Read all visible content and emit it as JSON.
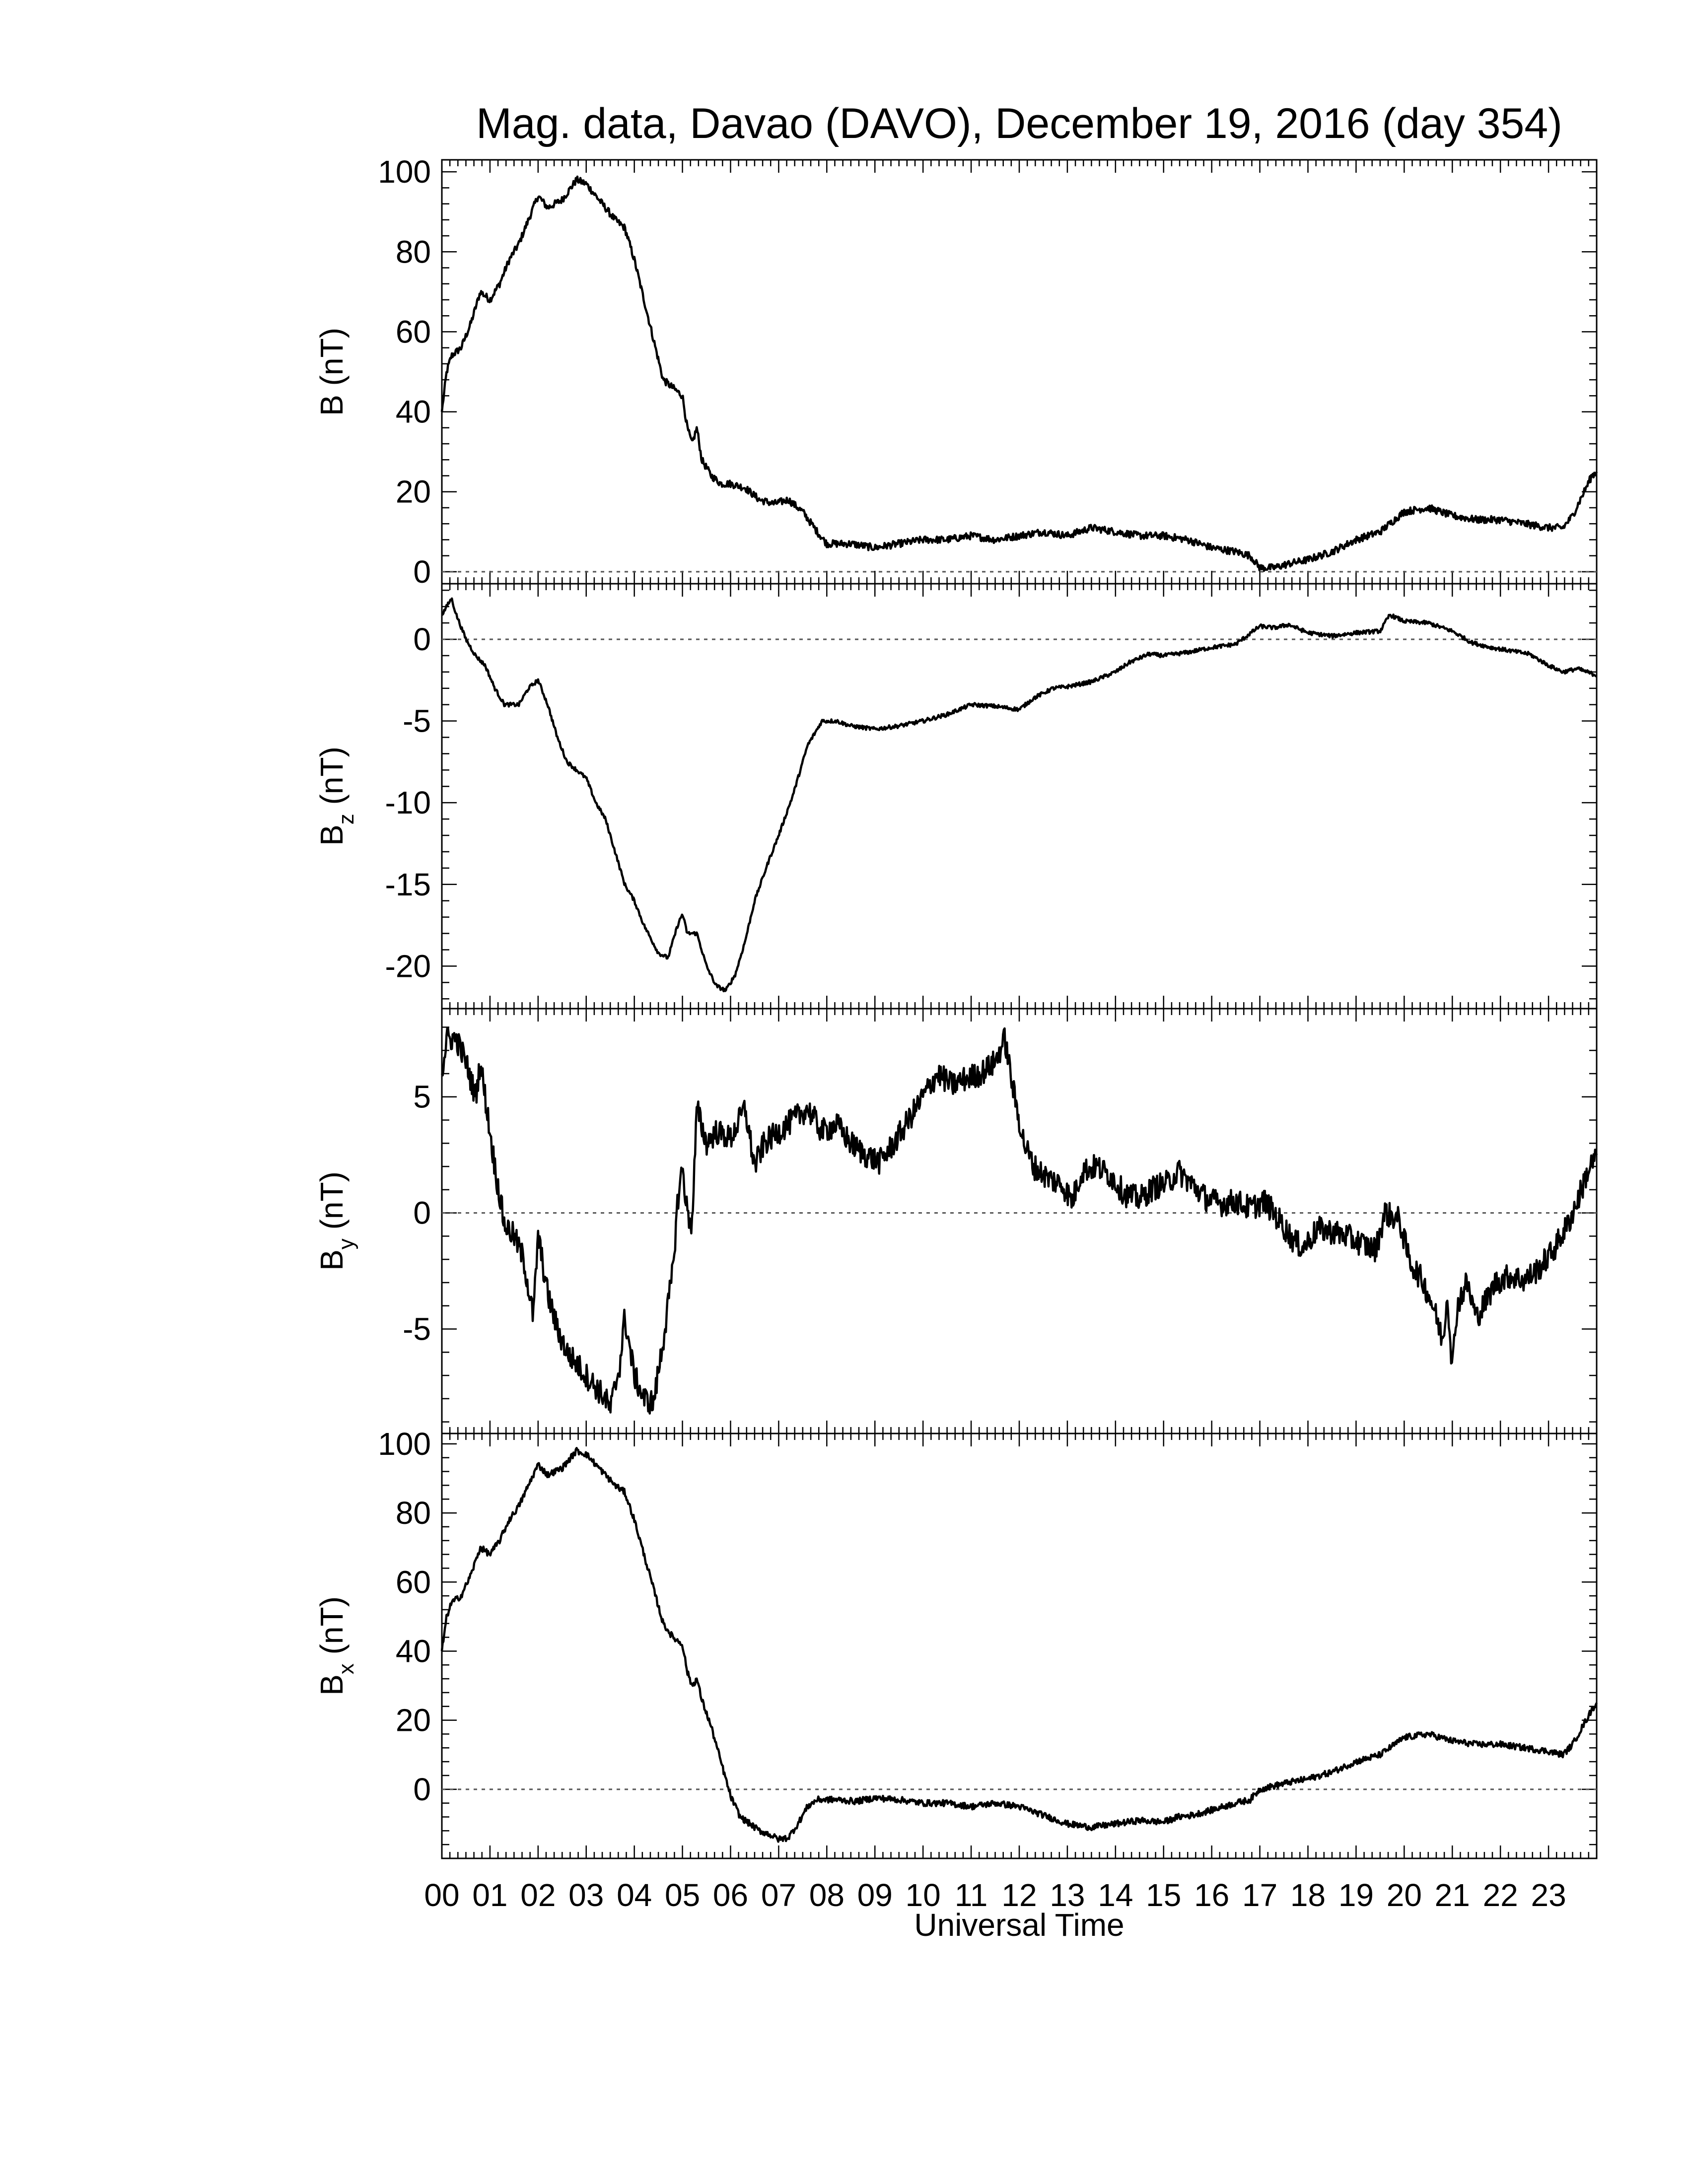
{
  "title": "Mag. data, Davao (DAVO), December 19, 2016 (day 354)",
  "xlabel": "Universal Time",
  "x_tick_labels": [
    "00",
    "01",
    "02",
    "03",
    "04",
    "05",
    "06",
    "07",
    "08",
    "09",
    "10",
    "11",
    "12",
    "13",
    "14",
    "15",
    "16",
    "17",
    "18",
    "19",
    "20",
    "21",
    "22",
    "23"
  ],
  "colors": {
    "trace": "#000000",
    "axes": "#000000",
    "zero_line": "#555555",
    "background": "#ffffff"
  },
  "chart_data": [
    {
      "type": "line",
      "id": "B",
      "ylabel_main": "B",
      "ylabel_sub": "",
      "ylabel_unit": "(nT)",
      "ylim": [
        -3,
        103
      ],
      "yticks": [
        0,
        20,
        40,
        60,
        80,
        100
      ],
      "ytick_labels": [
        "0",
        "20",
        "40",
        "60",
        "80",
        "100"
      ],
      "xlim": [
        0,
        24
      ],
      "zero_line": true,
      "noise": 0.9,
      "points": [
        [
          0,
          40
        ],
        [
          0.1,
          50
        ],
        [
          0.2,
          54
        ],
        [
          0.4,
          56
        ],
        [
          0.6,
          62
        ],
        [
          0.8,
          70
        ],
        [
          1.0,
          68
        ],
        [
          1.2,
          72
        ],
        [
          1.4,
          78
        ],
        [
          1.6,
          82
        ],
        [
          1.8,
          88
        ],
        [
          2.0,
          94
        ],
        [
          2.2,
          91
        ],
        [
          2.5,
          93
        ],
        [
          2.8,
          98
        ],
        [
          3.0,
          97
        ],
        [
          3.2,
          94
        ],
        [
          3.4,
          91
        ],
        [
          3.6,
          88
        ],
        [
          3.8,
          86
        ],
        [
          4.0,
          78
        ],
        [
          4.2,
          68
        ],
        [
          4.4,
          58
        ],
        [
          4.6,
          48
        ],
        [
          4.8,
          46
        ],
        [
          5.0,
          44
        ],
        [
          5.1,
          36
        ],
        [
          5.2,
          32
        ],
        [
          5.3,
          36
        ],
        [
          5.4,
          28
        ],
        [
          5.6,
          24
        ],
        [
          5.8,
          22
        ],
        [
          6.0,
          22
        ],
        [
          6.3,
          21
        ],
        [
          6.6,
          18
        ],
        [
          6.9,
          17
        ],
        [
          7.2,
          18
        ],
        [
          7.5,
          15
        ],
        [
          7.8,
          10
        ],
        [
          8.0,
          7
        ],
        [
          8.5,
          7
        ],
        [
          9.0,
          6
        ],
        [
          9.5,
          7
        ],
        [
          10.0,
          8
        ],
        [
          10.5,
          8
        ],
        [
          11.0,
          9
        ],
        [
          11.5,
          8
        ],
        [
          12.0,
          9
        ],
        [
          12.5,
          10
        ],
        [
          13.0,
          9
        ],
        [
          13.5,
          11
        ],
        [
          14.0,
          10
        ],
        [
          14.5,
          9
        ],
        [
          15.0,
          9
        ],
        [
          15.5,
          8
        ],
        [
          16.0,
          6
        ],
        [
          16.5,
          5
        ],
        [
          16.8,
          4
        ],
        [
          17.0,
          1
        ],
        [
          17.3,
          1
        ],
        [
          17.6,
          2
        ],
        [
          18.0,
          3
        ],
        [
          18.5,
          5
        ],
        [
          19.0,
          8
        ],
        [
          19.5,
          10
        ],
        [
          20.0,
          15
        ],
        [
          20.5,
          16
        ],
        [
          21.0,
          14
        ],
        [
          21.5,
          13
        ],
        [
          22.0,
          13
        ],
        [
          22.5,
          12
        ],
        [
          23.0,
          11
        ],
        [
          23.3,
          11
        ],
        [
          23.5,
          14
        ],
        [
          23.7,
          19
        ],
        [
          23.9,
          24
        ],
        [
          24.0,
          25
        ]
      ]
    },
    {
      "type": "line",
      "id": "Bz",
      "ylabel_main": "B",
      "ylabel_sub": "z",
      "ylabel_unit": "(nT)",
      "ylim": [
        -22.6,
        3.4
      ],
      "yticks": [
        -20,
        -15,
        -10,
        -5,
        0
      ],
      "ytick_labels": [
        "-20",
        "-15",
        "-10",
        "-5",
        "0"
      ],
      "xlim": [
        0,
        24
      ],
      "zero_line": true,
      "noise": 0.12,
      "points": [
        [
          0,
          1.5
        ],
        [
          0.1,
          2
        ],
        [
          0.2,
          2.5
        ],
        [
          0.3,
          1.5
        ],
        [
          0.5,
          0
        ],
        [
          0.7,
          -1
        ],
        [
          0.9,
          -1.6
        ],
        [
          1.1,
          -3
        ],
        [
          1.3,
          -4
        ],
        [
          1.6,
          -4
        ],
        [
          1.8,
          -3
        ],
        [
          2.0,
          -2.5
        ],
        [
          2.2,
          -4
        ],
        [
          2.4,
          -6
        ],
        [
          2.6,
          -7.5
        ],
        [
          2.8,
          -8
        ],
        [
          3.0,
          -8.5
        ],
        [
          3.2,
          -10
        ],
        [
          3.4,
          -11
        ],
        [
          3.6,
          -13
        ],
        [
          3.8,
          -15
        ],
        [
          4.0,
          -16
        ],
        [
          4.2,
          -17.5
        ],
        [
          4.5,
          -19.2
        ],
        [
          4.7,
          -19.5
        ],
        [
          4.9,
          -17.5
        ],
        [
          5.0,
          -16.8
        ],
        [
          5.1,
          -18
        ],
        [
          5.3,
          -18
        ],
        [
          5.5,
          -20
        ],
        [
          5.7,
          -21.2
        ],
        [
          5.9,
          -21.5
        ],
        [
          6.1,
          -20.5
        ],
        [
          6.3,
          -18.5
        ],
        [
          6.5,
          -16
        ],
        [
          6.8,
          -13.5
        ],
        [
          7.0,
          -12
        ],
        [
          7.3,
          -9.5
        ],
        [
          7.6,
          -6.5
        ],
        [
          7.9,
          -5
        ],
        [
          8.2,
          -5
        ],
        [
          8.5,
          -5.3
        ],
        [
          9.0,
          -5.5
        ],
        [
          9.5,
          -5.3
        ],
        [
          10.0,
          -5
        ],
        [
          10.5,
          -4.6
        ],
        [
          11.0,
          -4
        ],
        [
          11.5,
          -4.1
        ],
        [
          12.0,
          -4.3
        ],
        [
          12.3,
          -3.6
        ],
        [
          12.7,
          -3
        ],
        [
          13.0,
          -2.9
        ],
        [
          13.5,
          -2.6
        ],
        [
          14.0,
          -2
        ],
        [
          14.3,
          -1.4
        ],
        [
          14.7,
          -0.9
        ],
        [
          15.0,
          -1
        ],
        [
          15.5,
          -0.8
        ],
        [
          16.0,
          -0.5
        ],
        [
          16.5,
          -0.3
        ],
        [
          17.0,
          0.8
        ],
        [
          17.3,
          0.7
        ],
        [
          17.6,
          0.9
        ],
        [
          18.0,
          0.4
        ],
        [
          18.5,
          0.2
        ],
        [
          19.0,
          0.4
        ],
        [
          19.5,
          0.5
        ],
        [
          19.7,
          1.5
        ],
        [
          20.0,
          1.1
        ],
        [
          20.5,
          1
        ],
        [
          21.0,
          0.5
        ],
        [
          21.4,
          -0.2
        ],
        [
          21.8,
          -0.5
        ],
        [
          22.2,
          -0.7
        ],
        [
          22.6,
          -0.9
        ],
        [
          23.0,
          -1.6
        ],
        [
          23.3,
          -2
        ],
        [
          23.6,
          -1.8
        ],
        [
          23.8,
          -2
        ],
        [
          24.0,
          -2.2
        ]
      ]
    },
    {
      "type": "line",
      "id": "By",
      "ylabel_main": "B",
      "ylabel_sub": "y",
      "ylabel_unit": "(nT)",
      "ylim": [
        -9.5,
        8.8
      ],
      "yticks": [
        -5,
        0,
        5
      ],
      "ytick_labels": [
        "-5",
        "0",
        "5"
      ],
      "xlim": [
        0,
        24
      ],
      "zero_line": true,
      "noise": 0.55,
      "points": [
        [
          0,
          6
        ],
        [
          0.1,
          7.5
        ],
        [
          0.3,
          7.5
        ],
        [
          0.5,
          6.5
        ],
        [
          0.7,
          5
        ],
        [
          0.8,
          6.5
        ],
        [
          0.9,
          5
        ],
        [
          1.1,
          2
        ],
        [
          1.3,
          -0.5
        ],
        [
          1.5,
          -1
        ],
        [
          1.7,
          -2
        ],
        [
          1.9,
          -4.5
        ],
        [
          2.0,
          -1
        ],
        [
          2.2,
          -3.5
        ],
        [
          2.4,
          -5
        ],
        [
          2.6,
          -6
        ],
        [
          2.8,
          -6.5
        ],
        [
          3.0,
          -7
        ],
        [
          3.2,
          -7.5
        ],
        [
          3.4,
          -8
        ],
        [
          3.5,
          -8.5
        ],
        [
          3.7,
          -6.5
        ],
        [
          3.8,
          -4.5
        ],
        [
          4.0,
          -7
        ],
        [
          4.2,
          -8
        ],
        [
          4.4,
          -8.2
        ],
        [
          4.6,
          -5.5
        ],
        [
          4.8,
          -2.5
        ],
        [
          4.9,
          0.5
        ],
        [
          5.0,
          2
        ],
        [
          5.1,
          0
        ],
        [
          5.2,
          -0.5
        ],
        [
          5.3,
          4.5
        ],
        [
          5.5,
          3
        ],
        [
          5.7,
          3.5
        ],
        [
          6.0,
          3.2
        ],
        [
          6.3,
          4.5
        ],
        [
          6.5,
          2
        ],
        [
          6.7,
          3
        ],
        [
          7.0,
          3.5
        ],
        [
          7.3,
          4
        ],
        [
          7.6,
          4.5
        ],
        [
          7.9,
          3.5
        ],
        [
          8.2,
          3.8
        ],
        [
          8.5,
          3
        ],
        [
          8.8,
          2.5
        ],
        [
          9.1,
          2.2
        ],
        [
          9.4,
          3
        ],
        [
          9.7,
          4
        ],
        [
          10.0,
          5
        ],
        [
          10.3,
          6
        ],
        [
          10.6,
          5.5
        ],
        [
          10.9,
          5.8
        ],
        [
          11.2,
          6
        ],
        [
          11.5,
          6.5
        ],
        [
          11.7,
          7.5
        ],
        [
          11.9,
          5
        ],
        [
          12.1,
          3
        ],
        [
          12.3,
          2
        ],
        [
          12.6,
          1.5
        ],
        [
          12.9,
          1.2
        ],
        [
          13.1,
          0.5
        ],
        [
          13.3,
          1.8
        ],
        [
          13.6,
          2
        ],
        [
          13.9,
          1.6
        ],
        [
          14.2,
          0.8
        ],
        [
          14.5,
          0.6
        ],
        [
          14.8,
          1.1
        ],
        [
          15.1,
          1.3
        ],
        [
          15.3,
          1.8
        ],
        [
          15.6,
          1.2
        ],
        [
          15.9,
          0.6
        ],
        [
          16.2,
          0.4
        ],
        [
          16.5,
          0.5
        ],
        [
          16.8,
          0.2
        ],
        [
          17.1,
          0.5
        ],
        [
          17.4,
          -0.3
        ],
        [
          17.7,
          -1.2
        ],
        [
          17.9,
          -1.5
        ],
        [
          18.2,
          -0.7
        ],
        [
          18.5,
          -0.8
        ],
        [
          18.8,
          -1
        ],
        [
          19.1,
          -1.3
        ],
        [
          19.4,
          -1.6
        ],
        [
          19.6,
          0
        ],
        [
          19.9,
          -0.3
        ],
        [
          20.1,
          -2
        ],
        [
          20.4,
          -3
        ],
        [
          20.6,
          -4
        ],
        [
          20.8,
          -5.5
        ],
        [
          20.9,
          -3.5
        ],
        [
          21.0,
          -6.7
        ],
        [
          21.1,
          -4
        ],
        [
          21.3,
          -3
        ],
        [
          21.5,
          -4.5
        ],
        [
          21.7,
          -3.8
        ],
        [
          21.9,
          -3
        ],
        [
          22.2,
          -2.7
        ],
        [
          22.5,
          -2.9
        ],
        [
          22.8,
          -2.4
        ],
        [
          23.1,
          -1.6
        ],
        [
          23.4,
          -0.5
        ],
        [
          23.6,
          0.5
        ],
        [
          23.8,
          1.7
        ],
        [
          24.0,
          2.5
        ]
      ]
    },
    {
      "type": "line",
      "id": "Bx",
      "ylabel_main": "B",
      "ylabel_sub": "x",
      "ylabel_unit": "(nT)",
      "ylim": [
        -20,
        103
      ],
      "yticks": [
        0,
        20,
        40,
        60,
        80,
        100
      ],
      "ytick_labels": [
        "0",
        "20",
        "40",
        "60",
        "80",
        "100"
      ],
      "xlim": [
        0,
        24
      ],
      "zero_line": true,
      "noise": 0.9,
      "points": [
        [
          0,
          40
        ],
        [
          0.1,
          50
        ],
        [
          0.2,
          54
        ],
        [
          0.4,
          56
        ],
        [
          0.6,
          62
        ],
        [
          0.8,
          70
        ],
        [
          1.0,
          68
        ],
        [
          1.2,
          72
        ],
        [
          1.4,
          78
        ],
        [
          1.6,
          82
        ],
        [
          1.8,
          88
        ],
        [
          2.0,
          94
        ],
        [
          2.2,
          91
        ],
        [
          2.5,
          93
        ],
        [
          2.8,
          98
        ],
        [
          3.0,
          97
        ],
        [
          3.2,
          94
        ],
        [
          3.4,
          91
        ],
        [
          3.6,
          88
        ],
        [
          3.8,
          86
        ],
        [
          4.0,
          78
        ],
        [
          4.2,
          68
        ],
        [
          4.4,
          58
        ],
        [
          4.6,
          48
        ],
        [
          4.8,
          44
        ],
        [
          5.0,
          42
        ],
        [
          5.1,
          34
        ],
        [
          5.2,
          30
        ],
        [
          5.3,
          32
        ],
        [
          5.4,
          26
        ],
        [
          5.6,
          18
        ],
        [
          5.8,
          8
        ],
        [
          6.0,
          -2
        ],
        [
          6.2,
          -8
        ],
        [
          6.4,
          -10
        ],
        [
          6.6,
          -12
        ],
        [
          6.8,
          -13
        ],
        [
          7.0,
          -14.5
        ],
        [
          7.2,
          -14
        ],
        [
          7.4,
          -10
        ],
        [
          7.6,
          -5
        ],
        [
          7.8,
          -3
        ],
        [
          8.2,
          -3
        ],
        [
          8.6,
          -3.5
        ],
        [
          9.0,
          -2.5
        ],
        [
          9.5,
          -3
        ],
        [
          10.0,
          -4
        ],
        [
          10.5,
          -4
        ],
        [
          11.0,
          -5
        ],
        [
          11.5,
          -4
        ],
        [
          12.0,
          -5
        ],
        [
          12.5,
          -7.5
        ],
        [
          13.0,
          -10
        ],
        [
          13.5,
          -11
        ],
        [
          14.0,
          -10
        ],
        [
          14.5,
          -9
        ],
        [
          15.0,
          -9.5
        ],
        [
          15.3,
          -8
        ],
        [
          15.6,
          -7.5
        ],
        [
          16.0,
          -6
        ],
        [
          16.5,
          -4
        ],
        [
          16.8,
          -3
        ],
        [
          17.0,
          0
        ],
        [
          17.3,
          1
        ],
        [
          17.6,
          2
        ],
        [
          18.0,
          3
        ],
        [
          18.5,
          5
        ],
        [
          19.0,
          8
        ],
        [
          19.5,
          10
        ],
        [
          20.0,
          15
        ],
        [
          20.5,
          16
        ],
        [
          21.0,
          14
        ],
        [
          21.5,
          13
        ],
        [
          22.0,
          13
        ],
        [
          22.5,
          12
        ],
        [
          23.0,
          11
        ],
        [
          23.3,
          10
        ],
        [
          23.5,
          13
        ],
        [
          23.7,
          18
        ],
        [
          23.9,
          23
        ],
        [
          24.0,
          25
        ]
      ]
    }
  ]
}
